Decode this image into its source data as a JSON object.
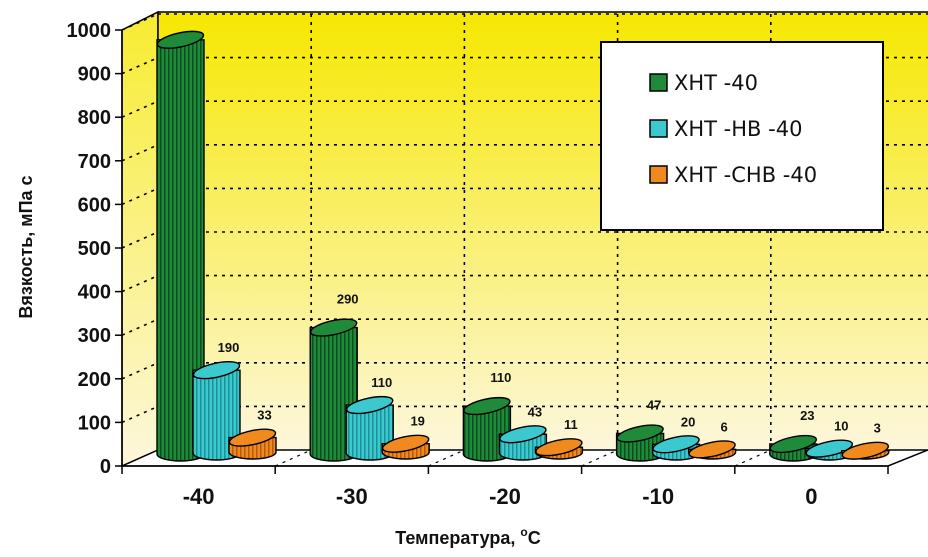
{
  "chart_data": {
    "type": "bar",
    "title": "",
    "xlabel": "Температура, °C",
    "xlabel_main": "Температура, ",
    "xlabel_sup": "o",
    "xlabel_unit": "C",
    "ylabel": "Вязкость, мПа с",
    "categories": [
      "-40",
      "-30",
      "-20",
      "-10",
      "0"
    ],
    "series": [
      {
        "name": "ХНТ -40",
        "values": [
          950,
          290,
          110,
          47,
          23
        ],
        "color": "#1f8a3a"
      },
      {
        "name": "ХНТ -НВ -40",
        "values": [
          190,
          110,
          43,
          20,
          10
        ],
        "color": "#3cc8cf"
      },
      {
        "name": "ХНТ -СНВ -40",
        "values": [
          33,
          19,
          11,
          6,
          3
        ],
        "color": "#f08a1e"
      }
    ],
    "data_labels": [
      [
        "",
        "290",
        "110",
        "47",
        "23"
      ],
      [
        "190",
        "110",
        "43",
        "20",
        "10"
      ],
      [
        "33",
        "19",
        "11",
        "6",
        "3"
      ]
    ],
    "ylim": [
      0,
      1000
    ],
    "yticks": [
      "0",
      "100",
      "200",
      "300",
      "400",
      "500",
      "600",
      "700",
      "800",
      "900",
      "1000"
    ],
    "grid": true,
    "legend_position": "top-right",
    "background": {
      "top": "#f6e800",
      "bottom": "#fdf6d8"
    }
  }
}
